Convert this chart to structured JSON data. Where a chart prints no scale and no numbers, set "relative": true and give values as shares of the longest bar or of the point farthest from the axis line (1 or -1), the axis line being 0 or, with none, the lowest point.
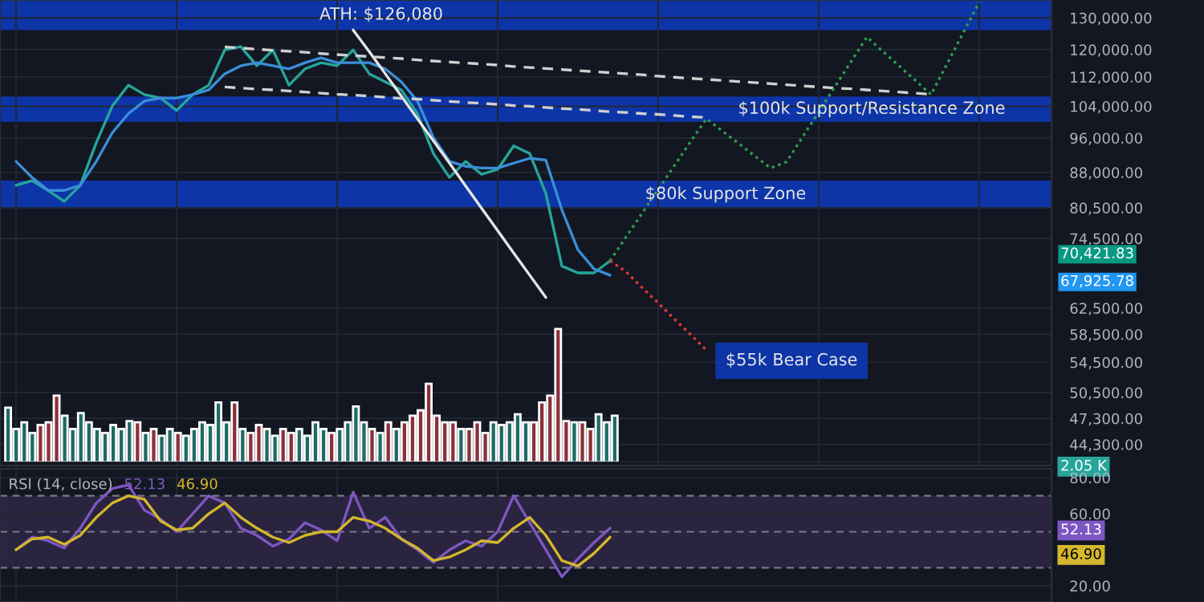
{
  "chart_data": [
    {
      "type": "line",
      "log": true,
      "grid": true,
      "tick_labels": "y",
      "legend": false,
      "categories": [
        null,
        null,
        null,
        null,
        null,
        null,
        null,
        null,
        null,
        null,
        null,
        null,
        null,
        null,
        null,
        null,
        null,
        null,
        null,
        null,
        null,
        null,
        null,
        null,
        null,
        null,
        null,
        null,
        null,
        null,
        null,
        null,
        null,
        null,
        null,
        null,
        null,
        null,
        null,
        null,
        null,
        null,
        null,
        null,
        null,
        null,
        null,
        null,
        null,
        null,
        null,
        null,
        null,
        null,
        null,
        null,
        null,
        null,
        null,
        null,
        null,
        null,
        null,
        null,
        null
      ],
      "ylim": [
        42000,
        136000
      ],
      "yticks": [
        {
          "value": 130000,
          "label": "130,000.00"
        },
        {
          "value": 120000,
          "label": "120,000.00"
        },
        {
          "value": 112000,
          "label": "112,000.00"
        },
        {
          "value": 104000,
          "label": "104,000.00"
        },
        {
          "value": 96000,
          "label": "96,000.00"
        },
        {
          "value": 88000,
          "label": "88,000.00"
        },
        {
          "value": 80500,
          "label": "80,500.00"
        },
        {
          "value": 74500,
          "label": "74,500.00"
        },
        {
          "value": 62500,
          "label": "62,500.00"
        },
        {
          "value": 58500,
          "label": "58,500.00"
        },
        {
          "value": 54500,
          "label": "54,500.00"
        },
        {
          "value": 50500,
          "label": "50,500.00"
        },
        {
          "value": 47300,
          "label": "47,300.00"
        },
        {
          "value": 44300,
          "label": "44,300.00"
        }
      ],
      "bands": [
        {
          "axis": "y",
          "from": 126080,
          "to": 136000,
          "label": "ATH: $126,080",
          "color": "#0d35a8"
        },
        {
          "axis": "y",
          "from": 100000,
          "to": 106600,
          "label": "$100k Support/Resistance Zone",
          "color": "#0d35a8"
        },
        {
          "axis": "y",
          "from": 80400,
          "to": 86200,
          "label": "$80k Support Zone",
          "color": "#0d35a8"
        }
      ],
      "series": [
        {
          "color": "#26a69a",
          "line_style": "solid",
          "values": [
            85200,
            86200,
            84100,
            81800,
            85200,
            94900,
            104100,
            109700,
            107100,
            106200,
            102900,
            107100,
            109700,
            119900,
            120900,
            115200,
            119900,
            109700,
            114300,
            116100,
            115200,
            119900,
            112900,
            110600,
            108400,
            102100,
            92300,
            86900,
            90500,
            87600,
            88700,
            94100,
            92300,
            83500,
            69500,
            68300,
            68300,
            70400,
            null,
            null,
            null,
            null,
            null,
            null,
            null,
            null,
            null,
            null,
            null,
            null,
            null,
            null,
            null,
            null,
            null,
            null,
            null,
            null,
            null,
            null,
            null,
            null,
            null,
            null,
            null
          ]
        },
        {
          "color": "#3a8fd8",
          "line_style": "solid",
          "values": [
            90500,
            86900,
            84100,
            84100,
            85200,
            90500,
            97300,
            102100,
            105400,
            106200,
            106200,
            107100,
            108400,
            112900,
            115200,
            116100,
            115200,
            114300,
            116100,
            117500,
            116100,
            116100,
            116100,
            114300,
            110600,
            105400,
            96100,
            90500,
            89400,
            89000,
            89000,
            90100,
            91200,
            90800,
            80100,
            72400,
            69000,
            67900,
            null,
            null,
            null,
            null,
            null,
            null,
            null,
            null,
            null,
            null,
            null,
            null,
            null,
            null,
            null,
            null,
            null,
            null,
            null,
            null,
            null,
            null,
            null,
            null,
            null,
            null,
            null
          ]
        },
        {
          "color": "#e6e6e6",
          "line_style": "solid",
          "values": [
            null,
            null,
            null,
            null,
            null,
            null,
            null,
            null,
            null,
            null,
            null,
            null,
            null,
            null,
            null,
            null,
            null,
            null,
            null,
            null,
            null,
            126080,
            119400,
            112900,
            106700,
            100800,
            95300,
            90100,
            85100,
            80400,
            76000,
            71800,
            67900,
            64200,
            null,
            null,
            null,
            null,
            null,
            null,
            null,
            null,
            null,
            null,
            null,
            null,
            null,
            null,
            null,
            null,
            null,
            null,
            null,
            null,
            null,
            null,
            null,
            null,
            null,
            null,
            null,
            null,
            null,
            null,
            null
          ]
        },
        {
          "color": "#d0d0d0",
          "line_style": "dashed",
          "values": [
            null,
            null,
            null,
            null,
            null,
            null,
            null,
            null,
            null,
            null,
            null,
            null,
            null,
            120800,
            120500,
            120100,
            119800,
            119500,
            119200,
            118800,
            118500,
            118200,
            117900,
            117600,
            117300,
            116900,
            116600,
            116300,
            116000,
            115700,
            115400,
            115000,
            114700,
            114400,
            114100,
            113800,
            113500,
            113200,
            112900,
            112600,
            112200,
            111900,
            111600,
            111300,
            111000,
            110700,
            110400,
            110100,
            109800,
            109500,
            109200,
            108900,
            108700,
            108400,
            108100,
            107800,
            107500,
            107200,
            null,
            null,
            null,
            null,
            null,
            null,
            null
          ]
        },
        {
          "color": "#d0d0d0",
          "line_style": "dashed",
          "values": [
            null,
            null,
            null,
            null,
            null,
            null,
            null,
            null,
            null,
            null,
            null,
            null,
            null,
            109200,
            108900,
            108600,
            108400,
            108100,
            107800,
            107500,
            107200,
            107000,
            106700,
            106400,
            106100,
            105900,
            105600,
            105300,
            105000,
            104800,
            104500,
            104200,
            104000,
            103700,
            103400,
            103200,
            102900,
            102600,
            102400,
            102100,
            101900,
            101600,
            101300,
            101100,
            null,
            null,
            null,
            null,
            null,
            null,
            null,
            null,
            null,
            null,
            null,
            null,
            null,
            null,
            null,
            null,
            null,
            null,
            null,
            null,
            null
          ]
        },
        {
          "color": "#2e9e4f",
          "line_style": "dotted",
          "values": [
            null,
            null,
            null,
            null,
            null,
            null,
            null,
            null,
            null,
            null,
            null,
            null,
            null,
            null,
            null,
            null,
            null,
            null,
            null,
            null,
            null,
            null,
            null,
            null,
            null,
            null,
            null,
            null,
            null,
            null,
            null,
            null,
            null,
            null,
            null,
            null,
            null,
            70400,
            74800,
            79400,
            84300,
            89500,
            95000,
            100800,
            97700,
            94700,
            91800,
            89000,
            90400,
            96300,
            102500,
            109200,
            116300,
            123900,
            119400,
            115200,
            111100,
            107100,
            115800,
            125200,
            135300,
            null,
            null,
            null,
            null
          ]
        },
        {
          "color": "#e53935",
          "line_style": "dotted",
          "values": [
            null,
            null,
            null,
            null,
            null,
            null,
            null,
            null,
            null,
            null,
            null,
            null,
            null,
            null,
            null,
            null,
            null,
            null,
            null,
            null,
            null,
            null,
            null,
            null,
            null,
            null,
            null,
            null,
            null,
            null,
            null,
            null,
            null,
            null,
            null,
            null,
            null,
            70400,
            68500,
            65800,
            63300,
            60800,
            58500,
            56200,
            null,
            null,
            null,
            null,
            null,
            null,
            null,
            null,
            null,
            null,
            null,
            null,
            null,
            null,
            null,
            null,
            null,
            null,
            null,
            null,
            null
          ]
        }
      ],
      "annotations": [
        "$55k Bear Case",
        "70,421.83",
        "67,925.78"
      ]
    },
    {
      "type": "bar",
      "relative": true,
      "tick_labels": false,
      "categories": [
        null,
        null,
        null,
        null,
        null,
        null,
        null,
        null,
        null,
        null,
        null,
        null,
        null,
        null,
        null,
        null,
        null,
        null,
        null,
        null,
        null,
        null,
        null,
        null,
        null,
        null,
        null,
        null,
        null,
        null,
        null,
        null,
        null,
        null,
        null,
        null,
        null,
        null,
        null,
        null,
        null,
        null,
        null,
        null,
        null,
        null,
        null,
        null,
        null,
        null,
        null,
        null,
        null,
        null,
        null,
        null,
        null,
        null,
        null,
        null,
        null,
        null,
        null,
        null,
        null,
        null,
        null,
        null,
        null,
        null,
        null,
        null,
        null,
        null,
        null,
        null
      ],
      "values": [
        0.41,
        0.25,
        0.3,
        0.22,
        0.28,
        0.3,
        0.5,
        0.35,
        0.25,
        0.37,
        0.3,
        0.25,
        0.22,
        0.28,
        0.25,
        0.31,
        0.3,
        0.22,
        0.25,
        0.2,
        0.25,
        0.22,
        0.2,
        0.25,
        0.3,
        0.28,
        0.45,
        0.3,
        0.45,
        0.25,
        0.22,
        0.28,
        0.25,
        0.2,
        0.25,
        0.22,
        0.25,
        0.2,
        0.3,
        0.25,
        0.22,
        0.25,
        0.3,
        0.42,
        0.3,
        0.25,
        0.22,
        0.3,
        0.25,
        0.3,
        0.35,
        0.39,
        0.59,
        0.35,
        0.3,
        0.3,
        0.25,
        0.25,
        0.3,
        0.22,
        0.3,
        0.28,
        0.3,
        0.36,
        0.3,
        0.3,
        0.45,
        0.5,
        1.0,
        0.31,
        0.3,
        0.3,
        0.25,
        0.36,
        0.3,
        0.35
      ],
      "colors": [
        "#1d6b64",
        "#1d6b64",
        "#1d6b64",
        "#1d6b64",
        "#8c2f3a",
        "#8c2f3a",
        "#8c2f3a",
        "#1d6b64",
        "#1d6b64",
        "#1d6b64",
        "#1d6b64",
        "#1d6b64",
        "#1d6b64",
        "#1d6b64",
        "#1d6b64",
        "#1d6b64",
        "#8c2f3a",
        "#1d6b64",
        "#8c2f3a",
        "#1d6b64",
        "#1d6b64",
        "#8c2f3a",
        "#1d6b64",
        "#1d6b64",
        "#1d6b64",
        "#1d6b64",
        "#1d6b64",
        "#1d6b64",
        "#8c2f3a",
        "#1d6b64",
        "#8c2f3a",
        "#8c2f3a",
        "#1d6b64",
        "#1d6b64",
        "#8c2f3a",
        "#8c2f3a",
        "#1d6b64",
        "#1d6b64",
        "#1d6b64",
        "#1d6b64",
        "#8c2f3a",
        "#1d6b64",
        "#1d6b64",
        "#1d6b64",
        "#1d6b64",
        "#8c2f3a",
        "#1d6b64",
        "#8c2f3a",
        "#1d6b64",
        "#8c2f3a",
        "#8c2f3a",
        "#8c2f3a",
        "#8c2f3a",
        "#8c2f3a",
        "#8c2f3a",
        "#8c2f3a",
        "#1d6b64",
        "#8c2f3a",
        "#8c2f3a",
        "#8c2f3a",
        "#1d6b64",
        "#1d6b64",
        "#1d6b64",
        "#1d6b64",
        "#1d6b64",
        "#8c2f3a",
        "#8c2f3a",
        "#8c2f3a",
        "#8c2f3a",
        "#8c2f3a",
        "#1d6b64",
        "#8c2f3a",
        "#8c2f3a",
        "#1d6b64",
        "#1d6b64",
        "#1d6b64"
      ],
      "annotations": [
        "2.05 K"
      ]
    },
    {
      "type": "line",
      "title": "RSI (14, close)",
      "tick_labels": "y",
      "grid": true,
      "legend": false,
      "categories": [
        null,
        null,
        null,
        null,
        null,
        null,
        null,
        null,
        null,
        null,
        null,
        null,
        null,
        null,
        null,
        null,
        null,
        null,
        null,
        null,
        null,
        null,
        null,
        null,
        null,
        null,
        null,
        null,
        null,
        null,
        null,
        null,
        null,
        null,
        null,
        null,
        null,
        null
      ],
      "ylim": [
        11,
        85
      ],
      "yticks": [
        {
          "value": 20,
          "label": "20.00"
        },
        {
          "value": 60,
          "label": "60.00"
        },
        {
          "value": 80,
          "label": "80.00"
        }
      ],
      "bands": [
        {
          "axis": "y",
          "from": 30,
          "to": 70,
          "color": "#2a2440"
        }
      ],
      "ref_lines": [
        {
          "axis": "y",
          "value": 70,
          "line_style": "dashed",
          "color": "#787b86"
        },
        {
          "axis": "y",
          "value": 50,
          "line_style": "dashed",
          "color": "#787b86"
        },
        {
          "axis": "y",
          "value": 30,
          "line_style": "dashed",
          "color": "#787b86"
        }
      ],
      "series": [
        {
          "color": "#7e57c2",
          "line_style": "solid",
          "values": [
            40,
            47,
            45,
            41,
            52,
            66,
            74,
            76,
            62,
            57,
            50,
            60,
            70,
            66,
            52,
            48,
            42,
            46,
            55,
            51,
            45,
            72,
            52,
            58,
            46,
            40,
            33,
            40,
            45,
            42,
            50,
            70,
            55,
            40,
            25,
            35,
            44,
            52
          ]
        },
        {
          "color": "#d4b72c",
          "line_style": "solid",
          "values": [
            40,
            46,
            47,
            43,
            48,
            58,
            66,
            70,
            68,
            56,
            51,
            52,
            60,
            66,
            58,
            52,
            47,
            44,
            48,
            50,
            50,
            58,
            56,
            52,
            46,
            41,
            34,
            36,
            40,
            45,
            44,
            52,
            58,
            48,
            34,
            31,
            38,
            47
          ]
        }
      ],
      "annotations": [
        "52.13",
        "46.90"
      ]
    }
  ]
}
